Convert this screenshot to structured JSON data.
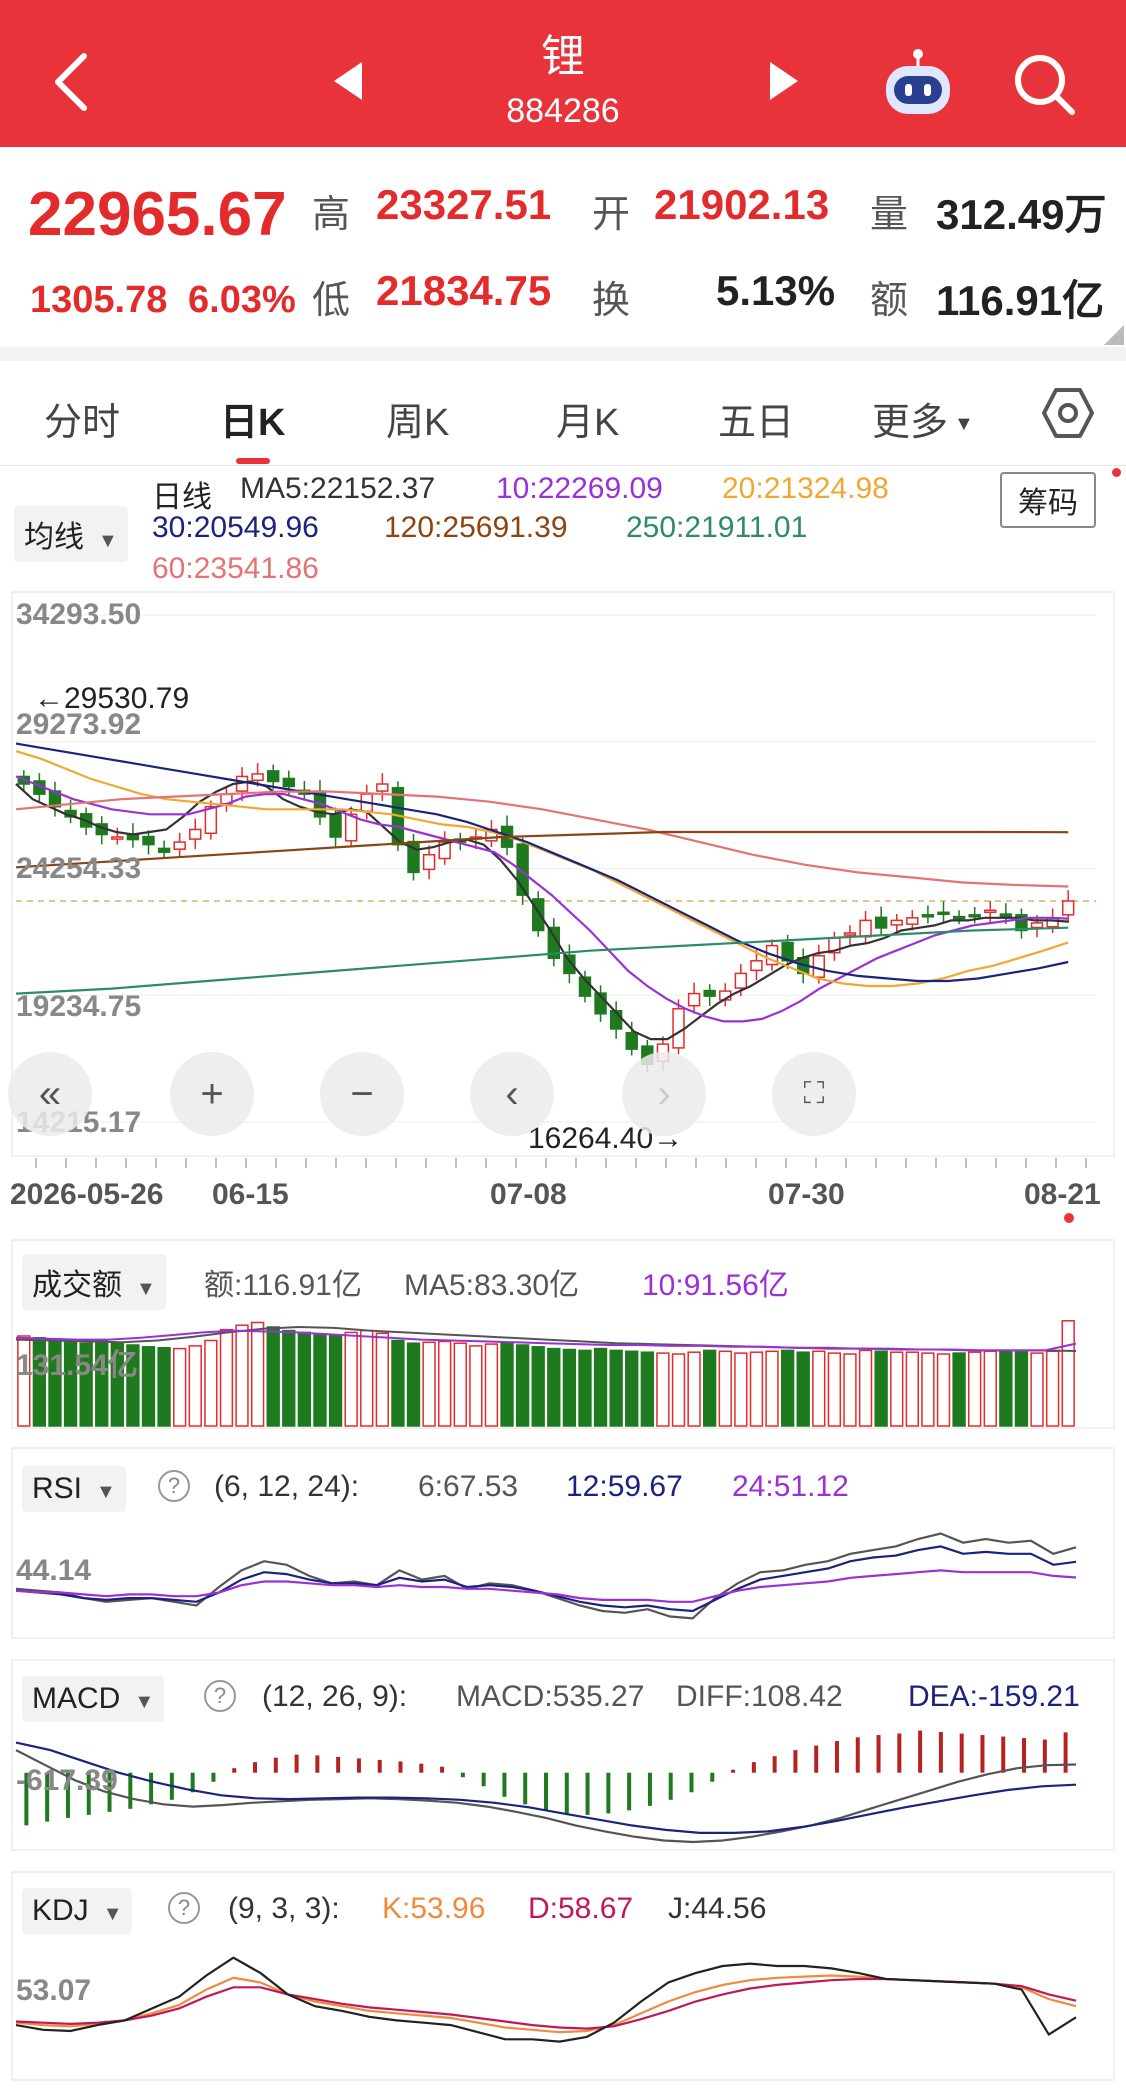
{
  "header": {
    "title": "锂",
    "code": "884286"
  },
  "quote": {
    "price": "22965.67",
    "change": "1305.78",
    "change_pct": "6.03%",
    "high_label": "高",
    "high": "23327.51",
    "open_label": "开",
    "open": "21902.13",
    "vol_label": "量",
    "vol": "312.49万",
    "low_label": "低",
    "low": "21834.75",
    "turn_label": "换",
    "turn": "5.13%",
    "amt_label": "额",
    "amt": "116.91亿"
  },
  "tabs": [
    "分时",
    "日K",
    "周K",
    "月K",
    "五日",
    "更多"
  ],
  "main_panel": {
    "dropdown": "均线",
    "period": "日线",
    "ma5": "MA5:22152.37",
    "ma10": "10:22269.09",
    "ma20": "20:21324.98",
    "ma30": "30:20549.96",
    "ma120": "120:25691.39",
    "ma250": "250:21911.01",
    "ma60": "60:23541.86",
    "chip_button": "筹码",
    "y_labels": [
      "34293.50",
      "29273.92",
      "24254.33",
      "19234.75",
      "14215.17"
    ],
    "max_marker": "←29530.79",
    "min_marker": "16264.40→",
    "x_labels": [
      "2026-05-26",
      "06-15",
      "07-08",
      "07-30",
      "08-21"
    ]
  },
  "volume_panel": {
    "dropdown": "成交额",
    "amt": "额:116.91亿",
    "ma5": "MA5:83.30亿",
    "ma10": "10:91.56亿",
    "y_label": "131.54亿"
  },
  "rsi_panel": {
    "dropdown": "RSI",
    "params": "(6, 12, 24):",
    "rsi6": "6:67.53",
    "rsi12": "12:59.67",
    "rsi24": "24:51.12",
    "y_label": "44.14"
  },
  "macd_panel": {
    "dropdown": "MACD",
    "params": "(12, 26, 9):",
    "macd": "MACD:535.27",
    "diff": "DIFF:108.42",
    "dea": "DEA:-159.21",
    "y_label": "-617.39"
  },
  "kdj_panel": {
    "dropdown": "KDJ",
    "params": "(9, 3, 3):",
    "k": "K:53.96",
    "d": "D:58.67",
    "j": "J:44.56",
    "y_label": "53.07"
  },
  "colors": {
    "up": "#e42b2b",
    "down": "#1f7a1f",
    "header": "#e8333a",
    "ma5": "#333333",
    "ma10": "#9b30d9",
    "ma20": "#f0a830",
    "ma30": "#1a237e",
    "ma60": "#e57373",
    "ma120": "#8b4513",
    "ma250": "#2e8b6a"
  },
  "chart_data": [
    {
      "type": "candlestick",
      "title": "日线",
      "x_labels": [
        "2026-05-26",
        "06-15",
        "07-08",
        "07-30",
        "08-21"
      ],
      "ylim": [
        14215.17,
        34293.5
      ],
      "y_ticks": [
        34293.5,
        29273.92,
        24254.33,
        19234.75,
        14215.17
      ],
      "max": 29530.79,
      "min": 16264.4,
      "close": [
        27600,
        27200,
        26700,
        26300,
        25900,
        25600,
        25500,
        25400,
        25200,
        24900,
        25300,
        25800,
        26700,
        27200,
        27900,
        28000,
        27700,
        27500,
        27200,
        26300,
        25500,
        26400,
        27200,
        27600,
        25200,
        24100,
        24800,
        25300,
        25300,
        25500,
        25800,
        25100,
        23200,
        21800,
        20700,
        20100,
        19200,
        18500,
        17900,
        17100,
        16500,
        17300,
        18700,
        19300,
        19200,
        19400,
        20100,
        20600,
        21200,
        20600,
        20100,
        20800,
        21500,
        21700,
        22200,
        21900,
        22200,
        22300,
        22400,
        22500,
        22300,
        22400,
        22600,
        22300,
        21800,
        22100,
        22300,
        22966
      ],
      "series": [
        {
          "name": "MA5",
          "values": [
            27600,
            27000,
            26700,
            26400,
            26200,
            25900,
            25700,
            25600,
            25700,
            25800,
            26300,
            26900,
            27300,
            27600,
            27700,
            27500,
            27000,
            26700,
            26500,
            26400,
            26600,
            26500,
            25900,
            25300,
            25000,
            25100,
            25300,
            25400,
            25200,
            24600,
            23800,
            22800,
            21800,
            20700,
            19900,
            19200,
            18500,
            17800,
            17500,
            17500,
            17900,
            18400,
            18900,
            19300,
            19600,
            20000,
            20400,
            20700,
            20900,
            21000,
            21200,
            21300,
            21500,
            21800,
            21900,
            22000,
            22200,
            22200,
            22300,
            22300,
            22300,
            22200,
            22200,
            22153
          ]
        },
        {
          "name": "10",
          "values": [
            27900,
            27600,
            27300,
            27000,
            26800,
            26600,
            26500,
            26400,
            26400,
            26400,
            26600,
            26800,
            27100,
            27200,
            27200,
            27000,
            26800,
            26500,
            26200,
            26000,
            25900,
            25700,
            25500,
            25300,
            25100,
            24900,
            24400,
            23800,
            23200,
            22500,
            21800,
            21000,
            20200,
            19600,
            19100,
            18700,
            18400,
            18200,
            18200,
            18300,
            18600,
            19000,
            19500,
            19900,
            20300,
            20700,
            21000,
            21300,
            21600,
            21800,
            22000,
            22100,
            22200,
            22300,
            22300,
            22269
          ]
        },
        {
          "name": "20",
          "values": [
            28900,
            28600,
            28200,
            27800,
            27500,
            27200,
            27000,
            26900,
            26800,
            26700,
            26600,
            26600,
            26600,
            26600,
            26500,
            26400,
            26200,
            26000,
            25900,
            25700,
            25400,
            25000,
            24600,
            24200,
            23700,
            23200,
            22700,
            22200,
            21700,
            21200,
            20700,
            20300,
            19900,
            19700,
            19600,
            19600,
            19700,
            19900,
            20200,
            20400,
            20700,
            21000,
            21325
          ]
        },
        {
          "name": "30",
          "values": [
            29200,
            29000,
            28800,
            28600,
            28400,
            28200,
            28000,
            27800,
            27600,
            27400,
            27200,
            27000,
            26800,
            26600,
            26400,
            26100,
            25700,
            25300,
            24800,
            24300,
            23800,
            23200,
            22600,
            22000,
            21400,
            20900,
            20500,
            20200,
            20000,
            19900,
            19800,
            19800,
            19900,
            20100,
            20300,
            20550
          ]
        },
        {
          "name": "60",
          "values": [
            26600,
            26800,
            27000,
            27100,
            27200,
            27300,
            27300,
            27200,
            27100,
            26900,
            26600,
            26200,
            25800,
            25300,
            24800,
            24400,
            24100,
            23900,
            23700,
            23600,
            23542
          ]
        },
        {
          "name": "120",
          "values": [
            24300,
            24500,
            24700,
            24900,
            25100,
            25300,
            25500,
            25600,
            25700,
            25700,
            25700,
            25700,
            25700,
            25691
          ]
        },
        {
          "name": "250",
          "values": [
            19300,
            19500,
            19800,
            20100,
            20400,
            20700,
            21000,
            21200,
            21400,
            21600,
            21800,
            21911
          ]
        }
      ]
    },
    {
      "type": "bar",
      "title": "成交额",
      "y_label_value": 131.54,
      "values": [
        100,
        98,
        97,
        94,
        92,
        96,
        93,
        90,
        88,
        87,
        86,
        89,
        95,
        107,
        112,
        115,
        110,
        106,
        104,
        102,
        101,
        104,
        106,
        103,
        95,
        92,
        93,
        94,
        92,
        89,
        91,
        93,
        90,
        88,
        86,
        85,
        84,
        86,
        84,
        83,
        82,
        81,
        80,
        82,
        84,
        83,
        81,
        82,
        83,
        84,
        82,
        83,
        81,
        80,
        84,
        83,
        82,
        82,
        81,
        80,
        81,
        82,
        83,
        84,
        82,
        81,
        83,
        116.91
      ],
      "series": [
        {
          "name": "MA5",
          "values": [
            96,
            95,
            94,
            93,
            95,
            99,
            104,
            108,
            110,
            109,
            106,
            104,
            102,
            100,
            98,
            96,
            94,
            92,
            91,
            90,
            89,
            88,
            87,
            86,
            86,
            85,
            85,
            84,
            84,
            84,
            83.3
          ]
        },
        {
          "name": "10",
          "values": [
            98,
            97,
            96,
            96,
            98,
            101,
            104,
            106,
            105,
            104,
            102,
            100,
            98,
            96,
            95,
            94,
            93,
            92,
            91,
            90,
            90,
            89,
            89,
            88,
            88,
            87,
            87,
            86,
            86,
            85,
            85,
            84,
            84,
            84,
            91.56
          ]
        }
      ]
    },
    {
      "type": "line",
      "title": "RSI",
      "y_label_value": 44.14,
      "series": [
        {
          "name": "6",
          "values": [
            45,
            44,
            43,
            40,
            38,
            39,
            40,
            38,
            36,
            46,
            55,
            60,
            58,
            52,
            48,
            49,
            47,
            55,
            50,
            52,
            45,
            48,
            47,
            44,
            40,
            36,
            33,
            32,
            34,
            30,
            29,
            40,
            48,
            54,
            55,
            58,
            60,
            64,
            66,
            68,
            72,
            75,
            70,
            72,
            70,
            71,
            64,
            67.53
          ]
        },
        {
          "name": "12",
          "values": [
            44,
            43,
            42,
            40,
            39,
            40,
            40,
            39,
            38,
            43,
            50,
            54,
            53,
            50,
            48,
            48,
            47,
            51,
            49,
            50,
            46,
            47,
            46,
            44,
            41,
            38,
            36,
            35,
            36,
            34,
            33,
            39,
            45,
            50,
            52,
            54,
            56,
            60,
            62,
            63,
            66,
            68,
            64,
            65,
            64,
            64,
            58,
            59.67
          ]
        },
        {
          "name": "24",
          "values": [
            44,
            43,
            43,
            42,
            41,
            42,
            42,
            41,
            41,
            43,
            47,
            49,
            49,
            48,
            47,
            47,
            46,
            47,
            46,
            46,
            45,
            45,
            44,
            43,
            42,
            40,
            39,
            39,
            39,
            38,
            38,
            41,
            44,
            46,
            47,
            48,
            49,
            51,
            52,
            53,
            54,
            55,
            54,
            54,
            54,
            54,
            52,
            51.12
          ]
        }
      ]
    },
    {
      "type": "bar",
      "title": "MACD",
      "y_label_value": -617.39,
      "series": [
        {
          "name": "MACD",
          "values": [
            -700,
            -650,
            -600,
            -560,
            -520,
            -480,
            -420,
            -360,
            -260,
            -120,
            60,
            140,
            200,
            240,
            230,
            210,
            190,
            170,
            150,
            120,
            80,
            -60,
            -180,
            -320,
            -420,
            -500,
            -540,
            -560,
            -540,
            -500,
            -440,
            -360,
            -260,
            -120,
            40,
            140,
            220,
            300,
            360,
            420,
            470,
            500,
            520,
            560,
            540,
            520,
            500,
            480,
            460,
            440,
            535.27
          ]
        },
        {
          "name": "DIFF",
          "values": [
            300,
            100,
            -100,
            -250,
            -350,
            -420,
            -450,
            -430,
            -400,
            -380,
            -360,
            -350,
            -340,
            -350,
            -370,
            -400,
            -450,
            -520,
            -600,
            -700,
            -780,
            -850,
            -900,
            -920,
            -900,
            -850,
            -780,
            -700,
            -600,
            -480,
            -360,
            -240,
            -120,
            -20,
            60,
            100,
            108.42
          ]
        },
        {
          "name": "DEA",
          "values": [
            400,
            300,
            150,
            0,
            -120,
            -220,
            -300,
            -340,
            -350,
            -340,
            -330,
            -330,
            -340,
            -360,
            -400,
            -460,
            -540,
            -620,
            -700,
            -760,
            -800,
            -800,
            -780,
            -720,
            -640,
            -550,
            -460,
            -380,
            -300,
            -230,
            -180,
            -159.21
          ]
        }
      ]
    },
    {
      "type": "line",
      "title": "KDJ",
      "y_label_value": 53.07,
      "series": [
        {
          "name": "K",
          "values": [
            40,
            38,
            37,
            39,
            42,
            48,
            55,
            68,
            78,
            74,
            64,
            58,
            54,
            50,
            48,
            46,
            44,
            40,
            36,
            34,
            32,
            33,
            38,
            48,
            58,
            66,
            72,
            76,
            78,
            79,
            80,
            79,
            77,
            76,
            75,
            74,
            73,
            70,
            60,
            53.96
          ]
        },
        {
          "name": "D",
          "values": [
            41,
            40,
            39,
            40,
            42,
            46,
            52,
            62,
            70,
            70,
            64,
            60,
            56,
            53,
            51,
            49,
            47,
            44,
            41,
            38,
            36,
            35,
            37,
            43,
            50,
            58,
            64,
            69,
            72,
            74,
            76,
            77,
            77,
            76,
            75,
            74,
            73,
            71,
            64,
            58.67
          ]
        },
        {
          "name": "J",
          "values": [
            38,
            34,
            33,
            38,
            42,
            52,
            62,
            80,
            95,
            82,
            64,
            54,
            50,
            45,
            42,
            40,
            38,
            32,
            26,
            26,
            24,
            28,
            40,
            58,
            74,
            82,
            88,
            90,
            88,
            88,
            86,
            82,
            77,
            76,
            75,
            74,
            73,
            68,
            30,
            44.56
          ]
        }
      ]
    }
  ]
}
